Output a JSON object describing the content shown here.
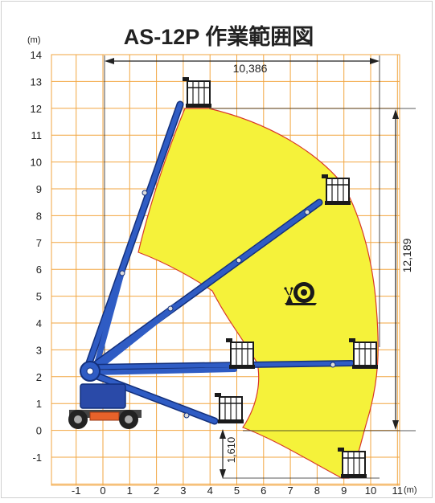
{
  "title": "AS-12P 作業範囲図",
  "axes": {
    "y_unit_label": "(m)",
    "x_unit_label": "(m)",
    "y_ticks": [
      "14",
      "13",
      "12",
      "11",
      "10",
      "9",
      "8",
      "7",
      "6",
      "5",
      "4",
      "3",
      "2",
      "1",
      "0",
      "-1"
    ],
    "x_ticks": [
      "-1",
      "0",
      "1",
      "2",
      "3",
      "4",
      "5",
      "6",
      "7",
      "8",
      "9",
      "10",
      "11"
    ]
  },
  "dimensions": {
    "horizontal_outreach": "10,386",
    "vertical_height": "12,189",
    "below_ground": "1,610"
  },
  "colors": {
    "grid": "#f2a640",
    "envelope_fill": "#f5f23a",
    "envelope_stroke": "#d8382a",
    "boom": "#2f5cc4",
    "boom_dark": "#13307c",
    "chassis": "#2a4aa8",
    "counterweight": "#e8622a",
    "platform": "#1a1a1a"
  },
  "icons": {
    "snail": "snail-icon"
  }
}
